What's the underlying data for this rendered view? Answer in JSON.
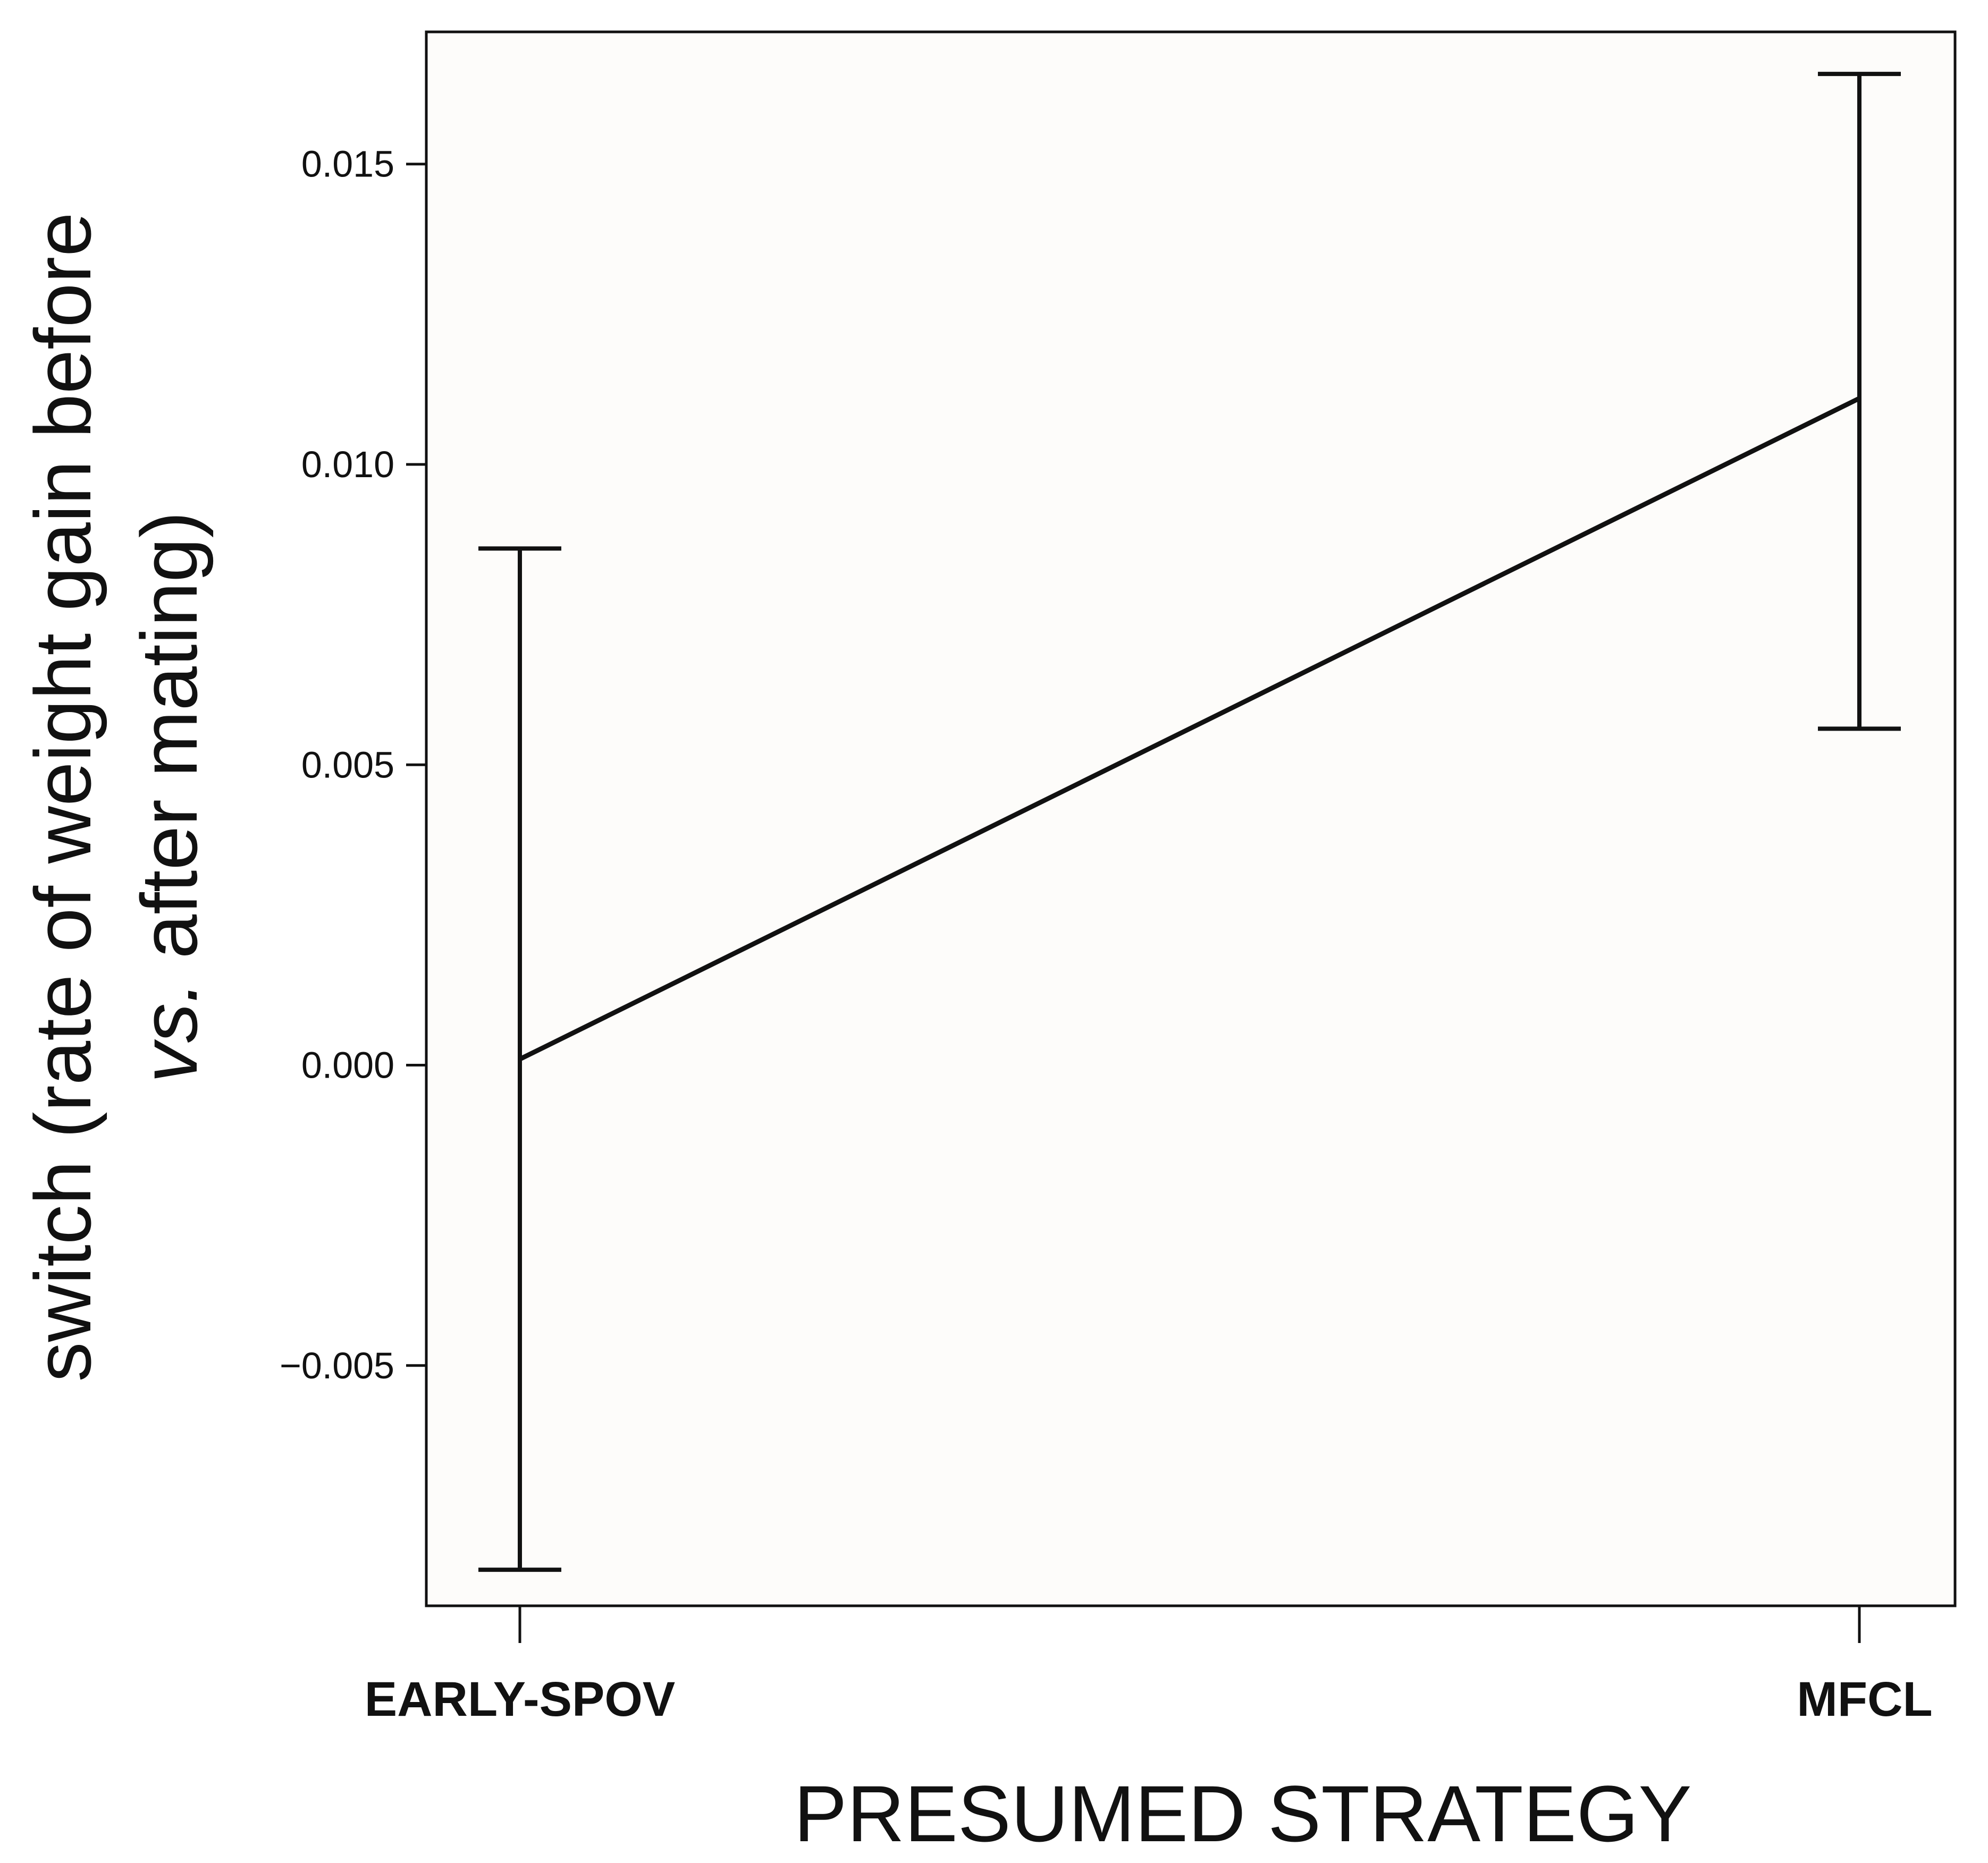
{
  "chart_data": {
    "type": "line",
    "categories": [
      "EARLY-SPOV",
      "MFCL"
    ],
    "series": [
      {
        "values": [
          0.0001,
          0.0111
        ],
        "lower": [
          -0.0084,
          0.0056
        ],
        "upper": [
          0.0086,
          0.0165
        ]
      }
    ],
    "xlabel": "PRESUMED STRATEGY",
    "ylabel_line1": "switch (rate of weight gain before",
    "ylabel_line2_italic": "vs.",
    "ylabel_line2_rest": " after mating)",
    "ylim": [
      -0.009,
      0.0172
    ],
    "yticks": [
      -0.005,
      0.0,
      0.005,
      0.01,
      0.015
    ],
    "ytick_labels": [
      "−0.005",
      "0.000",
      "0.005",
      "0.010",
      "0.015"
    ],
    "grid": false,
    "legend": "none",
    "colors": {
      "line": "#111111",
      "background": "#fdfcfa"
    }
  }
}
